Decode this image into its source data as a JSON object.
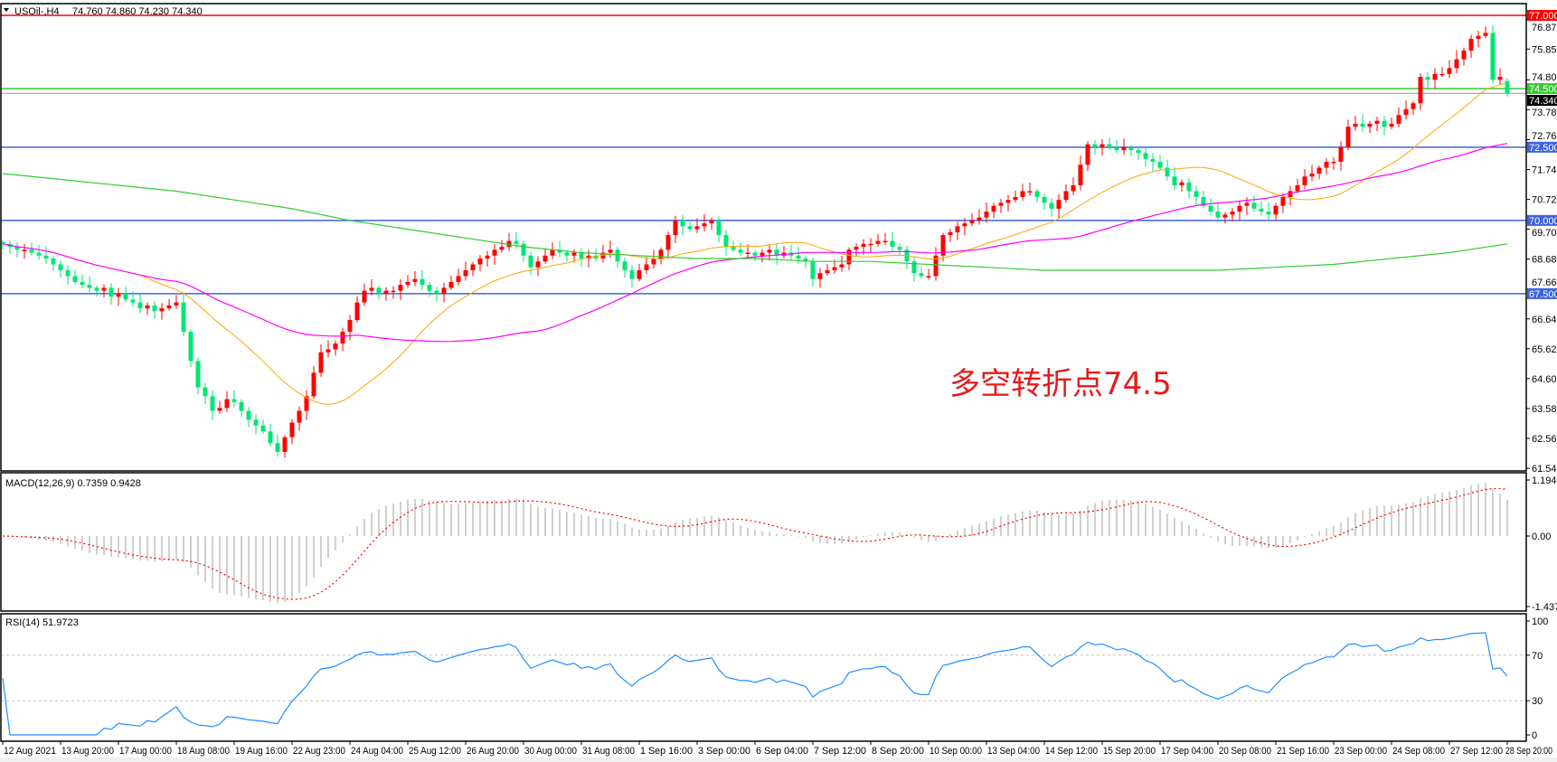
{
  "header": {
    "symbol": "USOil-,H4",
    "ohlc": "74.760 74.860 74.230 74.340"
  },
  "annotation": "多空转折点74.5",
  "colors": {
    "bull": "#00e676",
    "bear": "#ff0000",
    "ma_fast": "#ffa500",
    "ma_mid": "#ff00ff",
    "ma_long": "#33cc33",
    "macd_hist": "#c0c0c0",
    "macd_signal": "#ff0000",
    "rsi": "#1e90ff",
    "level_blue": "#3c64dc",
    "level_red": "#ff0000",
    "level_green": "#33cc33"
  },
  "chart_data": [
    {
      "type": "candlestick",
      "title": "USOil-,H4",
      "price_ticks": [
        "76.870",
        "75.850",
        "74.800",
        "73.780",
        "72.760",
        "71.740",
        "70.720",
        "69.700",
        "68.680",
        "67.660",
        "66.640",
        "65.620",
        "64.600",
        "63.580",
        "62.560",
        "61.540"
      ],
      "ylim": [
        61.54,
        77.0
      ],
      "current_price": "74.340",
      "levels": [
        {
          "value": "77.000",
          "color": "red"
        },
        {
          "value": "74.500",
          "color": "green"
        },
        {
          "value": "72.500",
          "color": "blue"
        },
        {
          "value": "70.000",
          "color": "blue"
        },
        {
          "value": "67.500",
          "color": "blue"
        }
      ],
      "time_labels": [
        "12 Aug 2021",
        "13 Aug 20:00",
        "17 Aug 00:00",
        "18 Aug 08:00",
        "19 Aug 16:00",
        "22 Aug 23:00",
        "24 Aug 04:00",
        "25 Aug 12:00",
        "26 Aug 20:00",
        "30 Aug 00:00",
        "31 Aug 08:00",
        "1 Sep 16:00",
        "3 Sep 00:00",
        "6 Sep 04:00",
        "7 Sep 12:00",
        "8 Sep 20:00",
        "10 Sep 00:00",
        "13 Sep 04:00",
        "14 Sep 12:00",
        "15 Sep 20:00",
        "17 Sep 04:00",
        "20 Sep 08:00",
        "21 Sep 16:00",
        "23 Sep 00:00",
        "24 Sep 08:00",
        "27 Sep 12:00",
        "28 Sep 20:00"
      ],
      "bars_per_time_label": 8,
      "close": [
        69.2,
        69.1,
        69.0,
        69.0,
        68.9,
        68.8,
        68.7,
        68.5,
        68.3,
        68.1,
        67.9,
        67.8,
        67.7,
        67.6,
        67.7,
        67.4,
        67.5,
        67.3,
        67.2,
        67.0,
        67.1,
        66.9,
        67.0,
        67.1,
        67.2,
        66.2,
        65.2,
        64.3,
        64.0,
        63.5,
        63.6,
        63.9,
        63.8,
        63.5,
        63.2,
        63.0,
        62.8,
        62.4,
        62.1,
        62.6,
        63.1,
        63.5,
        64.0,
        64.8,
        65.5,
        65.6,
        65.8,
        66.2,
        66.6,
        67.2,
        67.6,
        67.7,
        67.5,
        67.6,
        67.6,
        67.8,
        67.9,
        68.0,
        67.8,
        67.6,
        67.5,
        67.7,
        67.9,
        68.1,
        68.3,
        68.5,
        68.7,
        68.8,
        69.0,
        69.1,
        69.3,
        69.2,
        68.8,
        68.4,
        68.6,
        68.8,
        69.0,
        68.9,
        68.8,
        68.9,
        68.7,
        68.8,
        68.7,
        68.9,
        69.0,
        68.6,
        68.3,
        68.0,
        68.3,
        68.5,
        68.7,
        69.0,
        69.5,
        70.0,
        69.8,
        69.7,
        69.8,
        69.9,
        70.0,
        69.5,
        69.1,
        69.0,
        68.9,
        68.9,
        68.8,
        68.9,
        69.0,
        68.8,
        68.9,
        68.8,
        68.7,
        68.6,
        68.0,
        68.2,
        68.3,
        68.4,
        68.5,
        69.0,
        69.1,
        69.2,
        69.2,
        69.3,
        69.3,
        69.1,
        69.0,
        68.6,
        68.2,
        68.1,
        68.1,
        68.8,
        69.5,
        69.6,
        69.8,
        69.9,
        70.0,
        70.1,
        70.3,
        70.5,
        70.6,
        70.7,
        70.8,
        71.0,
        71.0,
        70.8,
        70.6,
        70.4,
        70.7,
        71.0,
        71.2,
        71.9,
        72.6,
        72.5,
        72.6,
        72.5,
        72.4,
        72.5,
        72.4,
        72.3,
        72.1,
        72.0,
        71.8,
        71.5,
        71.2,
        71.3,
        71.0,
        70.8,
        70.5,
        70.3,
        70.1,
        70.2,
        70.3,
        70.5,
        70.6,
        70.4,
        70.3,
        70.2,
        70.5,
        70.8,
        71.0,
        71.2,
        71.5,
        71.6,
        71.8,
        72.0,
        72.0,
        72.5,
        73.2,
        73.3,
        73.2,
        73.3,
        73.4,
        73.2,
        73.3,
        73.6,
        73.8,
        74.0,
        74.9,
        74.8,
        75.0,
        75.0,
        75.2,
        75.5,
        75.8,
        76.2,
        76.3,
        76.4,
        74.8,
        74.9,
        74.34
      ],
      "last_bar": {
        "open": 74.76,
        "high": 74.86,
        "low": 74.23,
        "close": 74.34
      },
      "ma_long_at_time_labels": [
        71.6,
        71.4,
        71.2,
        71.0,
        70.7,
        70.4,
        70.0,
        69.7,
        69.4,
        69.1,
        68.9,
        68.8,
        68.7,
        68.7,
        68.6,
        68.6,
        68.5,
        68.4,
        68.3,
        68.3,
        68.3,
        68.3,
        68.4,
        68.5,
        68.7,
        68.9,
        69.2
      ]
    },
    {
      "type": "histogram+line",
      "title": "MACD(12,26,9) 0.7359 0.9428",
      "ticks": [
        "1.1949",
        "0.00",
        "-1.4374"
      ],
      "ylim": [
        -1.4374,
        1.1949
      ]
    },
    {
      "type": "line",
      "title": "RSI(14) 51.9723",
      "ticks": [
        "100",
        "70",
        "30",
        "0"
      ],
      "ylim": [
        0,
        100
      ],
      "levels": [
        70,
        30
      ]
    }
  ]
}
